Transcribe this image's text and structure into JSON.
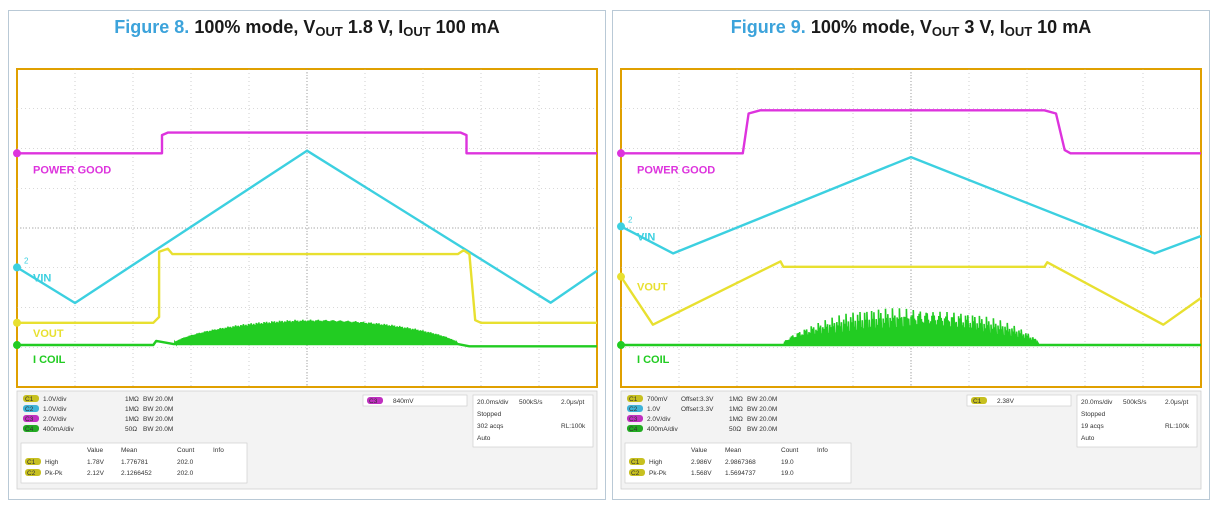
{
  "chart_data": [
    {
      "type": "line",
      "title_label": "Figure 8.",
      "title_main": "100% mode, V",
      "title_sub1": "OUT",
      "title_mid": " 1.8 V, I",
      "title_sub2": "OUT",
      "title_end": " 100 mA",
      "channels": [
        {
          "name": "POWER GOOD",
          "color": "#dd33dd",
          "marker": "",
          "points": [
            [
              0,
              0.735
            ],
            [
              0.25,
              0.735
            ],
            [
              0.25,
              0.792
            ],
            [
              0.26,
              0.8
            ],
            [
              0.765,
              0.8
            ],
            [
              0.775,
              0.792
            ],
            [
              0.775,
              0.735
            ],
            [
              1,
              0.735
            ]
          ]
        },
        {
          "name": "VIN",
          "color": "#3cd0e0",
          "marker": "2",
          "points": [
            [
              0,
              0.376
            ],
            [
              0.1,
              0.264
            ],
            [
              0.5,
              0.743
            ],
            [
              0.92,
              0.265
            ],
            [
              1,
              0.365
            ]
          ]
        },
        {
          "name": "VOUT",
          "color": "#e8e030",
          "marker": "",
          "points": [
            [
              0,
              0.202
            ],
            [
              0.235,
              0.202
            ],
            [
              0.245,
              0.22
            ],
            [
              0.245,
              0.425
            ],
            [
              0.26,
              0.435
            ],
            [
              0.268,
              0.418
            ],
            [
              0.76,
              0.418
            ],
            [
              0.77,
              0.43
            ],
            [
              0.78,
              0.418
            ],
            [
              0.79,
              0.21
            ],
            [
              0.8,
              0.202
            ],
            [
              1,
              0.202
            ]
          ]
        },
        {
          "name": "I COIL",
          "color": "#22cc22",
          "marker": "",
          "points": [
            [
              0,
              0.132
            ],
            [
              0.235,
              0.132
            ],
            [
              0.24,
              0.145
            ],
            [
              0.27,
              0.135
            ],
            [
              0.76,
              0.135
            ],
            [
              0.78,
              0.128
            ],
            [
              1,
              0.128
            ]
          ],
          "burst": {
            "x0": 0.27,
            "x1": 0.76,
            "base": 0.135,
            "amp": 0.078,
            "variation": 0.1
          }
        }
      ],
      "ch_settings": [
        {
          "ch": "C1",
          "scale": "1.0V/div",
          "offset": "",
          "imp": "1MΩ",
          "bw": "20.0M"
        },
        {
          "ch": "C2",
          "scale": "1.0V/div",
          "offset": "",
          "imp": "1MΩ",
          "bw": "20.0M"
        },
        {
          "ch": "C3",
          "scale": "2.0V/div",
          "offset": "",
          "imp": "1MΩ",
          "bw": "20.0M"
        },
        {
          "ch": "C4",
          "scale": "400mA/div",
          "offset": "",
          "imp": "50Ω",
          "bw": "20.0M"
        }
      ],
      "trigger": {
        "ch": "C3",
        "level": "840mV"
      },
      "timebase": {
        "tdiv": "20.0ms/div",
        "rate": "500kS/s",
        "res": "2.0μs/pt",
        "state": "Stopped",
        "acqs": "302 acqs",
        "rl": "RL:100k",
        "mode": "Auto"
      },
      "measure_headers": [
        "Value",
        "Mean",
        "Count",
        "Info"
      ],
      "measurements": [
        {
          "ch": "C1",
          "name": "High",
          "value": "1.78V",
          "mean": "1.776781",
          "count": "202.0"
        },
        {
          "ch": "C2",
          "name": "Pk-Pk",
          "value": "2.12V",
          "mean": "2.1266452",
          "count": "202.0"
        }
      ]
    },
    {
      "type": "line",
      "title_label": "Figure 9.",
      "title_main": "100% mode, V",
      "title_sub1": "OUT",
      "title_mid": " 3 V, I",
      "title_sub2": "OUT",
      "title_end": " 10 mA",
      "channels": [
        {
          "name": "POWER GOOD",
          "color": "#dd33dd",
          "marker": "",
          "points": [
            [
              0,
              0.735
            ],
            [
              0.21,
              0.735
            ],
            [
              0.22,
              0.86
            ],
            [
              0.24,
              0.87
            ],
            [
              0.73,
              0.87
            ],
            [
              0.75,
              0.86
            ],
            [
              0.765,
              0.745
            ],
            [
              0.775,
              0.735
            ],
            [
              1,
              0.735
            ]
          ]
        },
        {
          "name": "VIN",
          "color": "#3cd0e0",
          "marker": "2",
          "points": [
            [
              0,
              0.505
            ],
            [
              0.09,
              0.42
            ],
            [
              0.5,
              0.723
            ],
            [
              0.92,
              0.42
            ],
            [
              1,
              0.475
            ]
          ]
        },
        {
          "name": "VOUT",
          "color": "#e8e030",
          "marker": "",
          "points": [
            [
              0,
              0.347
            ],
            [
              0.055,
              0.196
            ],
            [
              0.275,
              0.395
            ],
            [
              0.28,
              0.378
            ],
            [
              0.73,
              0.378
            ],
            [
              0.735,
              0.392
            ],
            [
              0.935,
              0.196
            ],
            [
              1,
              0.28
            ]
          ]
        },
        {
          "name": "I COIL",
          "color": "#22cc22",
          "marker": "",
          "points": [
            [
              0,
              0.132
            ],
            [
              0.28,
              0.132
            ],
            [
              0.72,
              0.132
            ],
            [
              1,
              0.132
            ]
          ],
          "burst": {
            "x0": 0.28,
            "x1": 0.72,
            "base": 0.135,
            "amp": 0.12,
            "variation": 0.6
          }
        }
      ],
      "ch_settings": [
        {
          "ch": "C1",
          "scale": "700mV",
          "offset": "Offset:3.3V",
          "imp": "1MΩ",
          "bw": "20.0M"
        },
        {
          "ch": "C2",
          "scale": "1.0V",
          "offset": "Offset:3.3V",
          "imp": "1MΩ",
          "bw": "20.0M"
        },
        {
          "ch": "C3",
          "scale": "2.0V/div",
          "offset": "",
          "imp": "1MΩ",
          "bw": "20.0M"
        },
        {
          "ch": "C4",
          "scale": "400mA/div",
          "offset": "",
          "imp": "50Ω",
          "bw": "20.0M"
        }
      ],
      "trigger": {
        "ch": "C1",
        "level": "2.38V"
      },
      "timebase": {
        "tdiv": "20.0ms/div",
        "rate": "500kS/s",
        "res": "2.0μs/pt",
        "state": "Stopped",
        "acqs": "19 acqs",
        "rl": "RL:100k",
        "mode": "Auto"
      },
      "measure_headers": [
        "Value",
        "Mean",
        "Count",
        "Info"
      ],
      "measurements": [
        {
          "ch": "C1",
          "name": "High",
          "value": "2.986V",
          "mean": "2.9867368",
          "count": "19.0"
        },
        {
          "ch": "C2",
          "name": "Pk-Pk",
          "value": "1.568V",
          "mean": "1.5694737",
          "count": "19.0"
        }
      ]
    }
  ],
  "colors": {
    "title_label": "#3ca3db",
    "grid": "#b0b0b0",
    "frame": "#e0a000",
    "badge": "#c7c020",
    "badge_c2": "#3fb3d8",
    "badge_c3": "#c030c0",
    "badge_c4": "#22aa22"
  }
}
